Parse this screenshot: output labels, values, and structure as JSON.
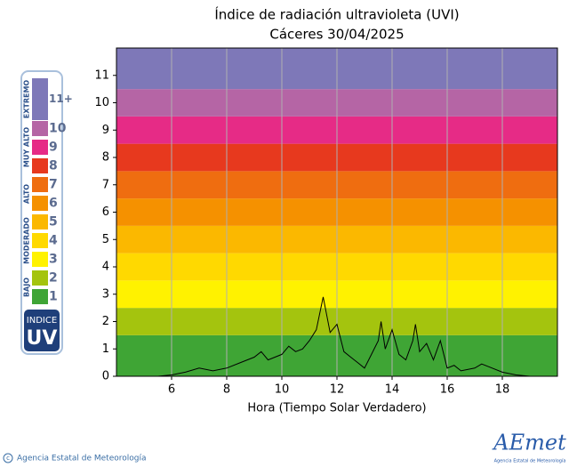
{
  "chart_data": {
    "type": "line",
    "title": "Índice de radiación ultravioleta (UVI)",
    "subtitle": "Cáceres 30/04/2025",
    "x_label": "Hora (Tiempo Solar Verdadero)",
    "xlim": [
      4,
      20
    ],
    "xticks": [
      6,
      8,
      10,
      12,
      14,
      16,
      18
    ],
    "ylim": [
      0,
      12
    ],
    "yticks": [
      0,
      1,
      2,
      3,
      4,
      5,
      6,
      7,
      8,
      9,
      10,
      11
    ],
    "grid": true,
    "color": "#000000",
    "x": [
      5,
      5.5,
      6,
      6.5,
      7,
      7.5,
      8,
      8.5,
      9,
      9.25,
      9.5,
      10,
      10.25,
      10.5,
      10.75,
      11,
      11.25,
      11.5,
      11.75,
      12,
      12.25,
      12.5,
      12.75,
      13,
      13.25,
      13.5,
      13.6,
      13.75,
      14,
      14.25,
      14.5,
      14.75,
      14.85,
      15,
      15.25,
      15.5,
      15.75,
      16,
      16.25,
      16.5,
      17,
      17.25,
      17.5,
      18,
      18.5,
      19
    ],
    "values": [
      0,
      0,
      0.05,
      0.15,
      0.3,
      0.2,
      0.3,
      0.5,
      0.7,
      0.9,
      0.6,
      0.8,
      1.1,
      0.9,
      1.0,
      1.3,
      1.7,
      2.9,
      1.6,
      1.9,
      0.9,
      0.7,
      0.5,
      0.3,
      0.8,
      1.3,
      2.0,
      1.0,
      1.7,
      0.8,
      0.6,
      1.3,
      1.9,
      0.9,
      1.2,
      0.6,
      1.3,
      0.3,
      0.4,
      0.2,
      0.3,
      0.45,
      0.35,
      0.15,
      0.05,
      0
    ],
    "bands": [
      {
        "label": "1",
        "from": 0,
        "to": 1.5,
        "color": "#3fa535"
      },
      {
        "label": "2",
        "from": 1.5,
        "to": 2.5,
        "color": "#a4c40e"
      },
      {
        "label": "3",
        "from": 2.5,
        "to": 3.5,
        "color": "#fff200"
      },
      {
        "label": "4",
        "from": 3.5,
        "to": 4.5,
        "color": "#ffd900"
      },
      {
        "label": "5",
        "from": 4.5,
        "to": 5.5,
        "color": "#fbb800"
      },
      {
        "label": "6",
        "from": 5.5,
        "to": 6.5,
        "color": "#f59100"
      },
      {
        "label": "7",
        "from": 6.5,
        "to": 7.5,
        "color": "#ef6d10"
      },
      {
        "label": "8",
        "from": 7.5,
        "to": 8.5,
        "color": "#e7391e"
      },
      {
        "label": "9",
        "from": 8.5,
        "to": 9.5,
        "color": "#e62b86"
      },
      {
        "label": "10",
        "from": 9.5,
        "to": 10.5,
        "color": "#b565a5"
      },
      {
        "label": "11+",
        "from": 10.5,
        "to": 12,
        "color": "#7e78b8"
      }
    ],
    "band_groups": [
      {
        "label": "BAJO",
        "bands": [
          0,
          1
        ]
      },
      {
        "label": "MODERADO",
        "bands": [
          2,
          4
        ]
      },
      {
        "label": "ALTO",
        "bands": [
          5,
          6
        ]
      },
      {
        "label": "MUY ALTO",
        "bands": [
          7,
          9
        ]
      },
      {
        "label": "EXTREMO",
        "bands": [
          10,
          10
        ]
      }
    ],
    "index_label": "INDICE",
    "uv_label": "UV"
  },
  "footer": {
    "copyright": "Agencia Estatal de Meteorología",
    "logo": "AEmet",
    "logo_caption": "Agencia Estatal de Meteorología"
  }
}
